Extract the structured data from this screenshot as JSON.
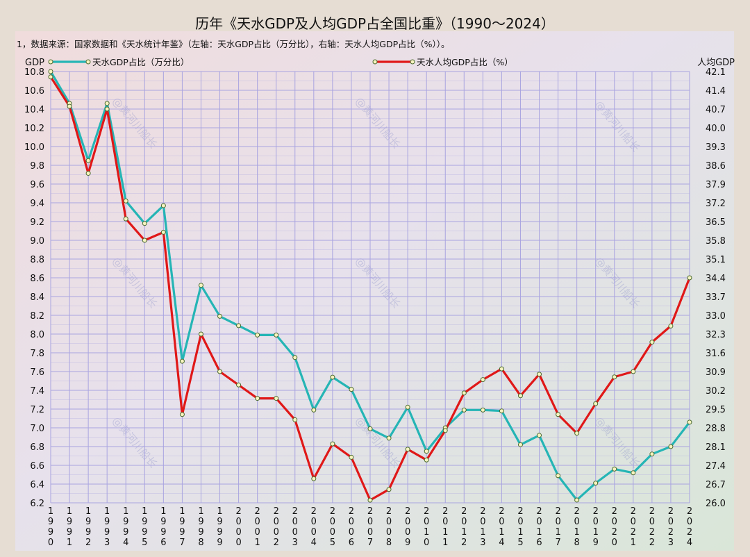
{
  "chart_data": {
    "type": "line",
    "title": "历年《天水GDP及人均GDP占全国比重》（1990～2024）",
    "subtitle": "1，数据来源：国家数据和《天水统计年鉴》（左轴：天水GDP占比（万分比），右轴：天水人均GDP占比（%））。",
    "y_left_label": "GDP",
    "y_right_label": "人均GDP",
    "x": [
      "1990",
      "1991",
      "1992",
      "1993",
      "1994",
      "1995",
      "1996",
      "1997",
      "1998",
      "1999",
      "2000",
      "2001",
      "2002",
      "2003",
      "2004",
      "2005",
      "2006",
      "2007",
      "2008",
      "2009",
      "2010",
      "2011",
      "2012",
      "2013",
      "2014",
      "2015",
      "2016",
      "2017",
      "2018",
      "2019",
      "2020",
      "2021",
      "2022",
      "2023",
      "2024"
    ],
    "y_left_ticks": [
      "10.8",
      "10.6",
      "10.4",
      "10.2",
      "10.0",
      "9.8",
      "9.6",
      "9.4",
      "9.2",
      "9.0",
      "8.8",
      "8.6",
      "8.4",
      "8.2",
      "8.0",
      "7.8",
      "7.6",
      "7.4",
      "7.2",
      "7.0",
      "6.8",
      "6.6",
      "6.4",
      "6.2"
    ],
    "y_right_ticks": [
      "42.1",
      "41.4",
      "40.7",
      "40.0",
      "39.3",
      "38.6",
      "37.9",
      "37.2",
      "36.5",
      "35.8",
      "35.1",
      "34.4",
      "33.7",
      "33.0",
      "32.3",
      "31.6",
      "30.9",
      "30.2",
      "29.5",
      "28.8",
      "28.1",
      "27.4",
      "26.7",
      "26.0"
    ],
    "y_left_range": [
      6.2,
      10.8
    ],
    "y_right_range": [
      26.0,
      42.1
    ],
    "series": [
      {
        "name": "天水GDP占比（万分比）",
        "axis": "left",
        "color": "#25b5b5",
        "values": [
          10.8,
          10.46,
          9.85,
          10.46,
          9.42,
          9.18,
          9.37,
          7.71,
          8.52,
          8.19,
          8.09,
          7.99,
          7.99,
          7.75,
          7.19,
          7.54,
          7.41,
          6.99,
          6.89,
          7.22,
          6.75,
          7.0,
          7.19,
          7.19,
          7.18,
          6.82,
          6.92,
          6.49,
          6.23,
          6.41,
          6.56,
          6.52,
          6.72,
          6.8,
          7.06
        ]
      },
      {
        "name": "天水人均GDP占比（%）",
        "axis": "right",
        "color": "#e01818",
        "values": [
          41.9,
          40.8,
          38.3,
          40.7,
          36.6,
          35.8,
          36.1,
          29.3,
          32.3,
          30.9,
          30.4,
          29.9,
          29.9,
          29.1,
          26.9,
          28.2,
          27.7,
          26.1,
          26.5,
          28.0,
          27.6,
          28.7,
          30.1,
          30.6,
          31.0,
          30.0,
          30.8,
          29.3,
          28.6,
          29.7,
          30.7,
          30.9,
          32.0,
          32.6,
          34.4
        ]
      }
    ],
    "grid": true,
    "legend": "top"
  },
  "watermark": "@黄河川船长",
  "colors": {
    "background": "#e6ddd3",
    "grid": "#a9a4e0"
  }
}
